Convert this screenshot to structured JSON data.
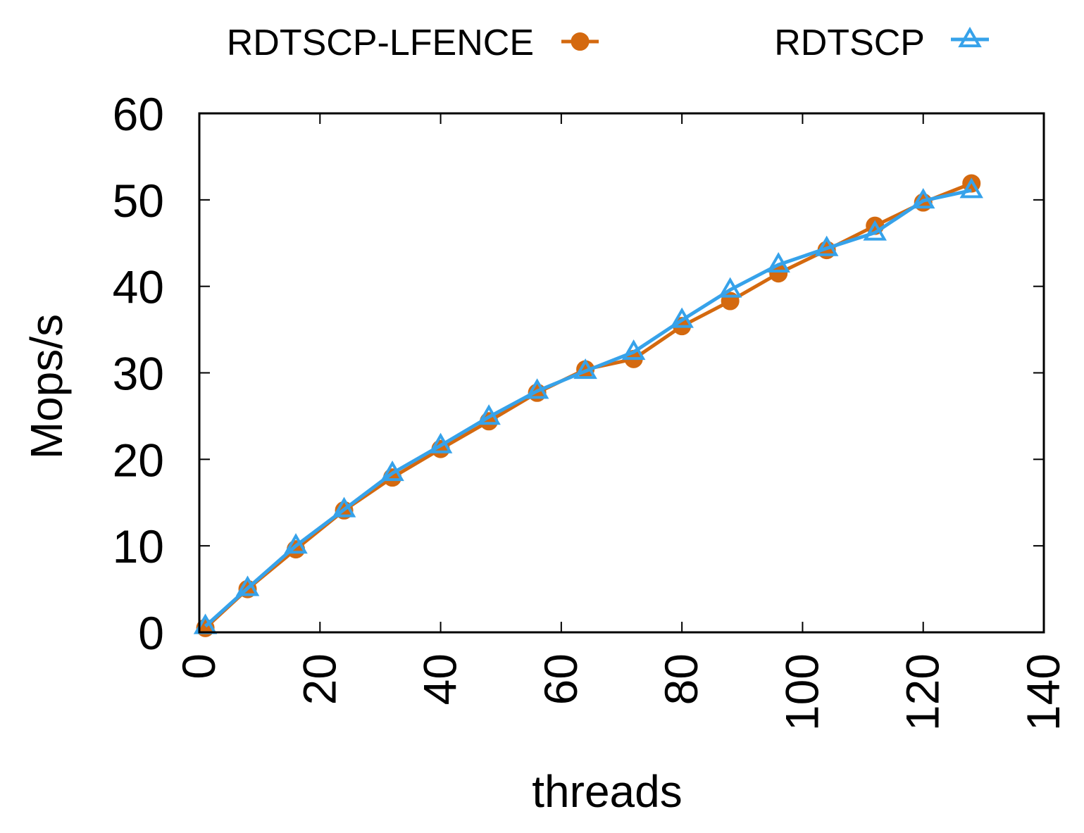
{
  "chart_data": {
    "type": "line",
    "title": "",
    "xlabel": "threads",
    "ylabel": "Mops/s",
    "xlim": [
      0,
      140
    ],
    "ylim": [
      0,
      60
    ],
    "xticks": [
      0,
      20,
      40,
      60,
      80,
      100,
      120,
      140
    ],
    "yticks": [
      0,
      10,
      20,
      30,
      40,
      50,
      60
    ],
    "grid": false,
    "legend_position": "top (outside plot, horizontal)",
    "series": [
      {
        "name": "RDTSCP-LFENCE",
        "color": "#d4690f",
        "marker": "circle",
        "x": [
          1,
          8,
          16,
          24,
          32,
          40,
          48,
          56,
          64,
          72,
          80,
          88,
          96,
          104,
          112,
          120,
          128
        ],
        "y": [
          0.5,
          5.0,
          9.6,
          14.1,
          17.9,
          21.2,
          24.4,
          27.7,
          30.4,
          31.6,
          35.4,
          38.3,
          41.5,
          44.2,
          47.0,
          49.7,
          51.9
        ]
      },
      {
        "name": "RDTSCP",
        "color": "#36a2ea",
        "marker": "triangle-open",
        "x": [
          1,
          8,
          16,
          24,
          32,
          40,
          48,
          56,
          64,
          72,
          80,
          88,
          96,
          104,
          112,
          120,
          128
        ],
        "y": [
          0.7,
          5.1,
          10.0,
          14.2,
          18.4,
          21.6,
          24.9,
          27.9,
          30.2,
          32.4,
          36.1,
          39.6,
          42.5,
          44.4,
          46.2,
          49.9,
          51.1
        ]
      }
    ]
  }
}
